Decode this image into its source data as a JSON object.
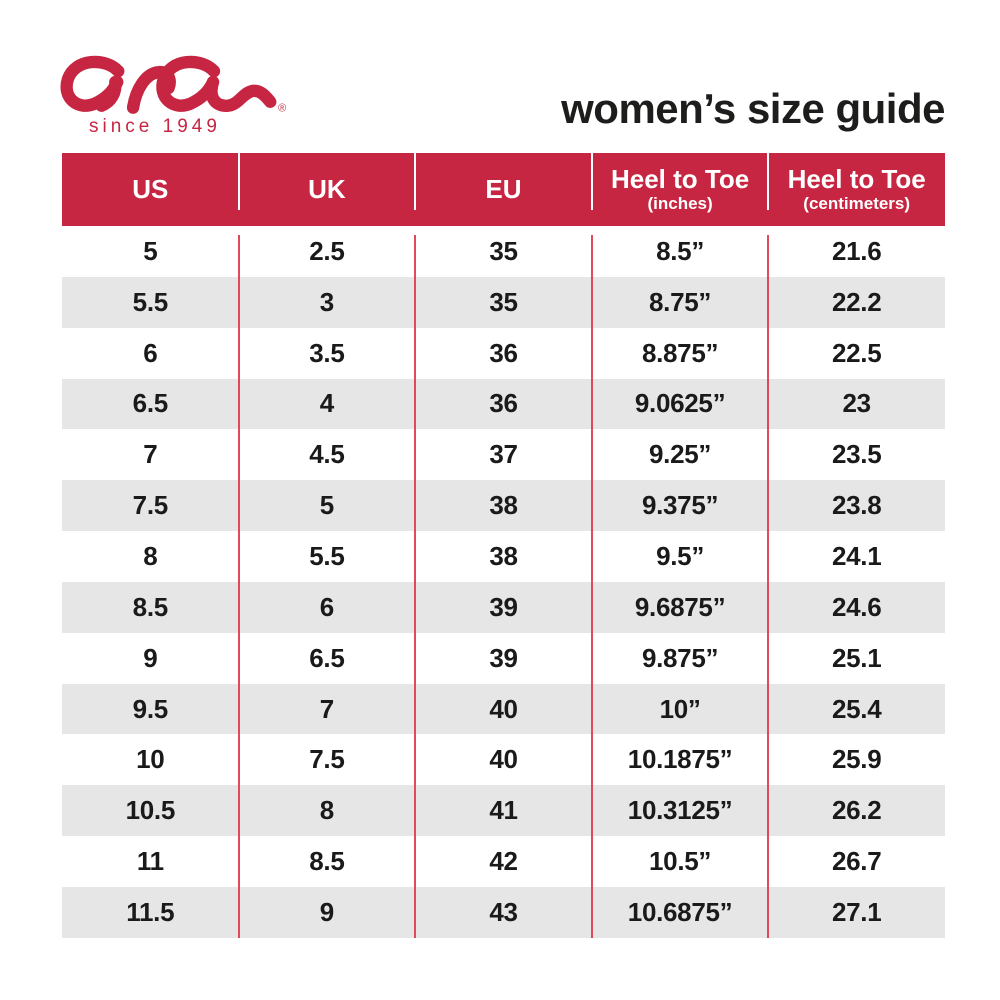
{
  "brand": {
    "logo_text": "ara",
    "registered_mark": "®",
    "tagline": "since 1949"
  },
  "page_title": "women’s size guide",
  "colors": {
    "brand_red": "#C72642",
    "divider_red": "#DF4A5F",
    "row_alt_gray": "#E6E6E6",
    "text_black": "#1A1A1A",
    "header_text_white": "#FFFFFF"
  },
  "chart_data": {
    "type": "table",
    "title": "women’s size guide",
    "columns": [
      {
        "label": "US",
        "sublabel": ""
      },
      {
        "label": "UK",
        "sublabel": ""
      },
      {
        "label": "EU",
        "sublabel": ""
      },
      {
        "label": "Heel to Toe",
        "sublabel": "(inches)"
      },
      {
        "label": "Heel to Toe",
        "sublabel": "(centimeters)"
      }
    ],
    "rows": [
      [
        "5",
        "2.5",
        "35",
        "8.5”",
        "21.6"
      ],
      [
        "5.5",
        "3",
        "35",
        "8.75”",
        "22.2"
      ],
      [
        "6",
        "3.5",
        "36",
        "8.875”",
        "22.5"
      ],
      [
        "6.5",
        "4",
        "36",
        "9.0625”",
        "23"
      ],
      [
        "7",
        "4.5",
        "37",
        "9.25”",
        "23.5"
      ],
      [
        "7.5",
        "5",
        "38",
        "9.375”",
        "23.8"
      ],
      [
        "8",
        "5.5",
        "38",
        "9.5”",
        "24.1"
      ],
      [
        "8.5",
        "6",
        "39",
        "9.6875”",
        "24.6"
      ],
      [
        "9",
        "6.5",
        "39",
        "9.875”",
        "25.1"
      ],
      [
        "9.5",
        "7",
        "40",
        "10”",
        "25.4"
      ],
      [
        "10",
        "7.5",
        "40",
        "10.1875”",
        "25.9"
      ],
      [
        "10.5",
        "8",
        "41",
        "10.3125”",
        "26.2"
      ],
      [
        "11",
        "8.5",
        "42",
        "10.5”",
        "26.7"
      ],
      [
        "11.5",
        "9",
        "43",
        "10.6875”",
        "27.1"
      ]
    ]
  }
}
